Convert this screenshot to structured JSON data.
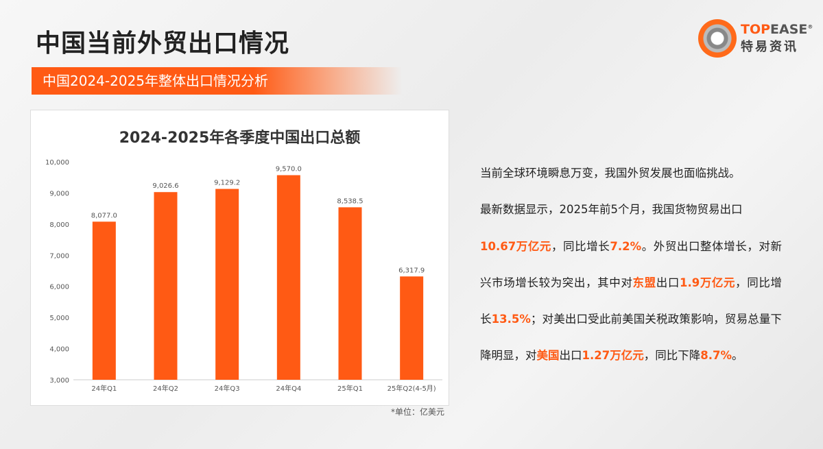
{
  "header": {
    "title": "中国当前外贸出口情况",
    "subtitle": "中国2024-2025年整体出口情况分析"
  },
  "logo": {
    "en_a": "TOP",
    "en_b": "EASE",
    "reg": "®",
    "cn": "特易资讯"
  },
  "colors": {
    "accent": "#ff5a14"
  },
  "chart_data": {
    "type": "bar",
    "title": "2024-2025年各季度中国出口总额",
    "categories": [
      "24年Q1",
      "24年Q2",
      "24年Q3",
      "24年Q4",
      "25年Q1",
      "25年Q2(4-5月)"
    ],
    "values": [
      8077.0,
      9026.6,
      9129.2,
      9570.0,
      8538.5,
      6317.9
    ],
    "value_labels": [
      "8,077.0",
      "9,026.6",
      "9,129.2",
      "9,570.0",
      "8,538.5",
      "6,317.9"
    ],
    "ylim": [
      3000,
      10000
    ],
    "yticks": [
      "3,000",
      "4,000",
      "5,000",
      "6,000",
      "7,000",
      "8,000",
      "9,000",
      "10,000"
    ],
    "unit": "*单位：亿美元"
  },
  "text": {
    "l1": "当前全球环境瞬息万变，我国外贸发展也面临挑战。",
    "l2": "最新数据显示，2025年前5个月，我国货物贸易出口",
    "h1": "10.67万亿元",
    "t1": "，同比增长",
    "h2": "7.2%",
    "t2": "。外贸出口整体增长，对新兴市场增长较为突出，其中对",
    "h3": "东盟",
    "t3": "出口",
    "h4": "1.9万亿元",
    "t4": "，同比增长",
    "h5": "13.5%",
    "t5": "；对美出口受此前美国关税政策影响，贸易总量下降明显，对",
    "h6": "美国",
    "t6": "出口",
    "h7": "1.27万亿元",
    "t7": "，同比下降",
    "h8": "8.7%",
    "t8": "。"
  }
}
